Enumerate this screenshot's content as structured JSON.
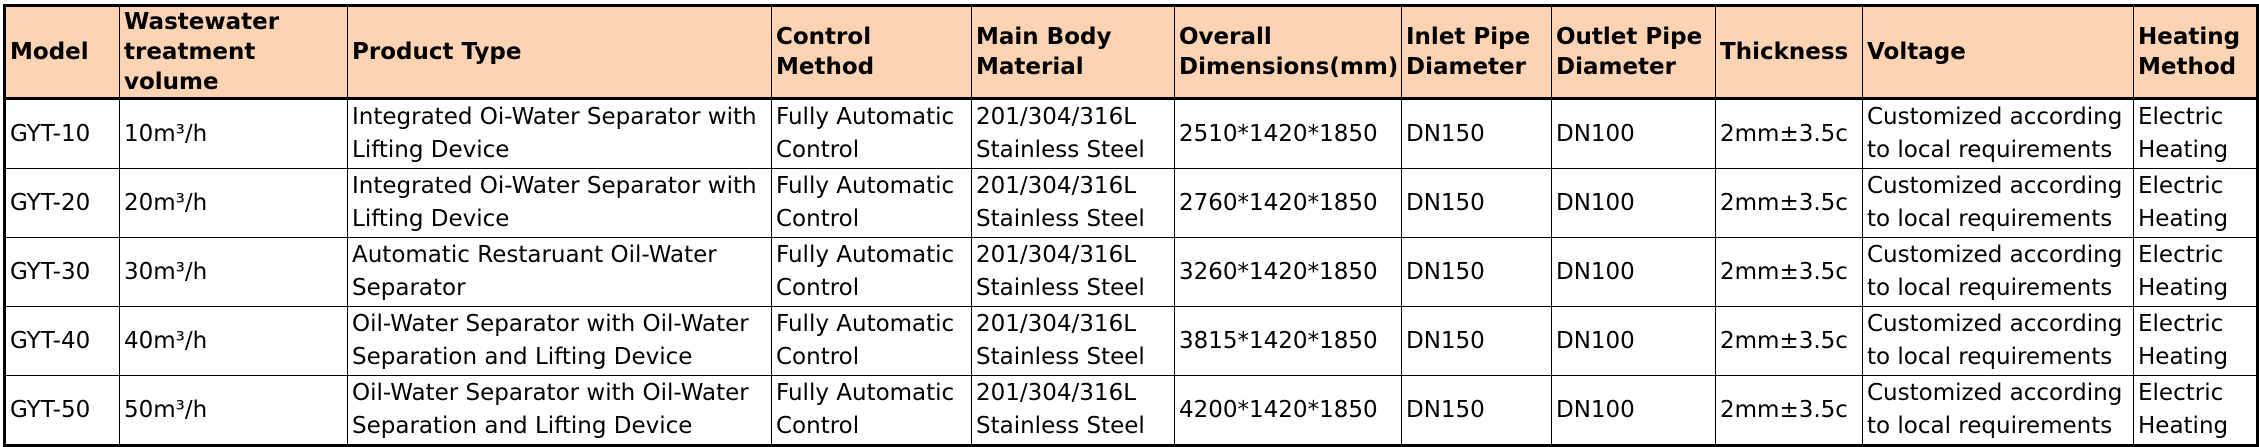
{
  "table": {
    "headers": [
      "Model",
      "Wastewater treatment volume",
      "Product Type",
      "Control Method",
      "Main Body Material",
      "Overall Dimensions(mm)",
      "Inlet Pipe Diameter",
      "Outlet Pipe Diameter",
      "Thickness",
      "Voltage",
      "Heating Method"
    ],
    "rows": [
      [
        "GYT-10",
        "10m³/h",
        "Integrated Oi-Water Separator with Lifting Device",
        "Fully Automatic Control",
        "201/304/316L Stainless Steel",
        "2510*1420*1850",
        "DN150",
        "DN100",
        "2mm±3.5c",
        "Customized according to local requirements",
        "Electric Heating"
      ],
      [
        "GYT-20",
        "20m³/h",
        "Integrated Oi-Water Separator with Lifting Device",
        "Fully Automatic Control",
        "201/304/316L Stainless Steel",
        "2760*1420*1850",
        "DN150",
        "DN100",
        "2mm±3.5c",
        "Customized according to local requirements",
        "Electric Heating"
      ],
      [
        "GYT-30",
        "30m³/h",
        "Automatic Restaruant Oil-Water Separator",
        "Fully Automatic Control",
        "201/304/316L Stainless Steel",
        "3260*1420*1850",
        "DN150",
        "DN100",
        "2mm±3.5c",
        "Customized according to local requirements",
        "Electric Heating"
      ],
      [
        "GYT-40",
        "40m³/h",
        "Oil-Water Separator with Oil-Water Separation and Lifting Device",
        "Fully Automatic Control",
        "201/304/316L Stainless Steel",
        "3815*1420*1850",
        "DN150",
        "DN100",
        "2mm±3.5c",
        "Customized according to local requirements",
        "Electric Heating"
      ],
      [
        "GYT-50",
        "50m³/h",
        "Oil-Water Separator with Oil-Water Separation and Lifting Device",
        "Fully Automatic Control",
        "201/304/316L Stainless Steel",
        "4200*1420*1850",
        "DN150",
        "DN100",
        "2mm±3.5c",
        "Customized according to local requirements",
        "Electric Heating"
      ]
    ]
  },
  "colors": {
    "header_background": "#fcd4b4",
    "grid_lines": "#000000",
    "text": "#000000"
  }
}
